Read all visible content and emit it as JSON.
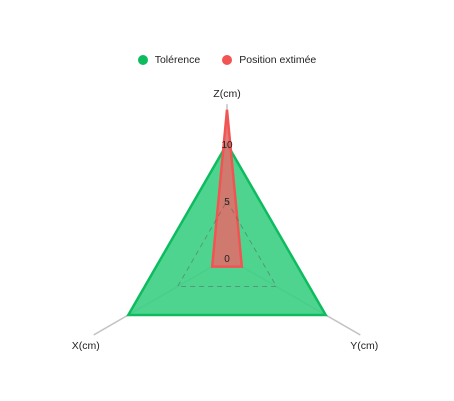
{
  "chart_data": {
    "type": "radar",
    "axes": [
      "Z(cm)",
      "Y(cm)",
      "X(cm)"
    ],
    "r_range": [
      0,
      10
    ],
    "ticks": [
      0,
      5,
      10
    ],
    "series": [
      {
        "name": "Tolérence",
        "values": [
          10,
          10,
          10
        ],
        "color": "#0dbc5f",
        "fill": "#3ccf84"
      },
      {
        "name": "Position extimée",
        "values": [
          13,
          1.5,
          1.5
        ],
        "color": "#f25353",
        "fill": "#e66a6a"
      }
    ],
    "legend_position": "top-center",
    "grid": true
  }
}
